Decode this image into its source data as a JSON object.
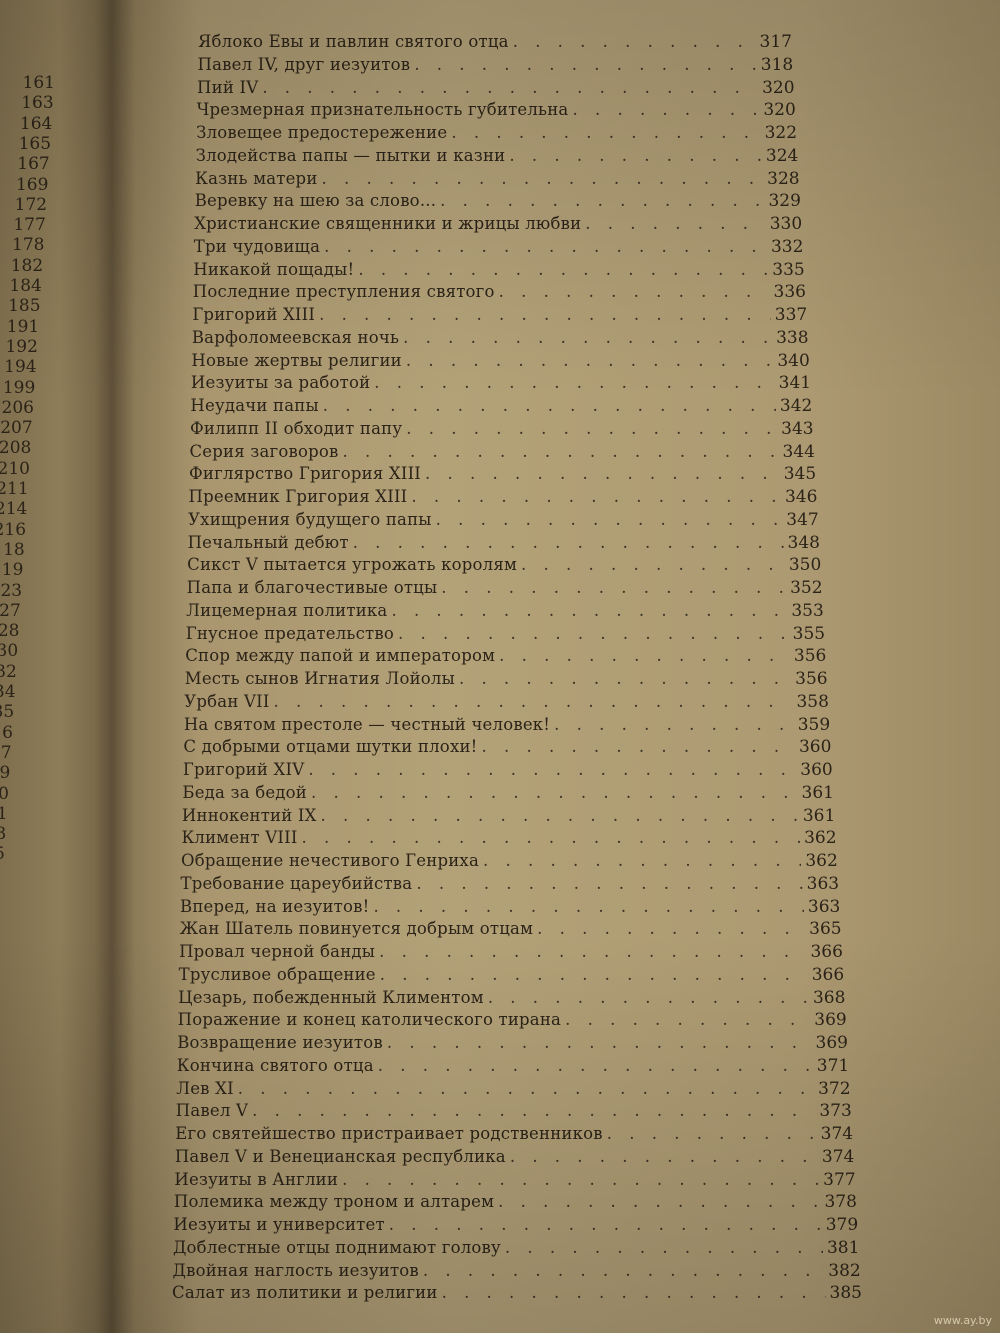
{
  "left_page_numbers": [
    "161",
    "163",
    "164",
    "165",
    "167",
    "169",
    "172",
    "177",
    "178",
    "182",
    "184",
    "185",
    "191",
    "192",
    "194",
    "199",
    "206",
    "207",
    "208",
    "210",
    "211",
    "214",
    "216",
    "18",
    "19",
    "23",
    "27",
    "28",
    "30",
    "32",
    "34",
    "35",
    "6",
    "7",
    "9",
    "0",
    "1",
    "3",
    "5"
  ],
  "entries": [
    {
      "title": "Яблоко Евы и павлин святого отца",
      "page": "317"
    },
    {
      "title": "Павел IV, друг иезуитов",
      "page": "318"
    },
    {
      "title": "Пий IV",
      "page": "320"
    },
    {
      "title": "Чрезмерная признательность губительна",
      "page": "320"
    },
    {
      "title": "Зловещее предостережение",
      "page": "322"
    },
    {
      "title": "Злодейства папы — пытки и казни",
      "page": "324"
    },
    {
      "title": "Казнь матери",
      "page": "328"
    },
    {
      "title": "Веревку на шею за слово...",
      "page": "329"
    },
    {
      "title": "Христианские священники и жрицы любви",
      "page": "330"
    },
    {
      "title": "Три чудовища",
      "page": "332"
    },
    {
      "title": "Никакой пощады!",
      "page": "335"
    },
    {
      "title": "Последние преступления святого",
      "page": "336"
    },
    {
      "title": "Григорий XIII",
      "page": "337"
    },
    {
      "title": "Варфоломеевская ночь",
      "page": "338"
    },
    {
      "title": "Новые жертвы религии",
      "page": "340"
    },
    {
      "title": "Иезуиты за работой",
      "page": "341"
    },
    {
      "title": "Неудачи папы",
      "page": "342"
    },
    {
      "title": "Филипп II обходит папу",
      "page": "343"
    },
    {
      "title": "Серия заговоров",
      "page": "344"
    },
    {
      "title": "Фиглярство Григория XIII",
      "page": "345"
    },
    {
      "title": "Преемник Григория XIII",
      "page": "346"
    },
    {
      "title": "Ухищрения будущего папы",
      "page": "347"
    },
    {
      "title": "Печальный дебют",
      "page": "348"
    },
    {
      "title": "Сикст V пытается угрожать королям",
      "page": "350"
    },
    {
      "title": "Папа и благочестивые отцы",
      "page": "352"
    },
    {
      "title": "Лицемерная политика",
      "page": "353"
    },
    {
      "title": "Гнусное предательство",
      "page": "355"
    },
    {
      "title": "Спор между папой и императором",
      "page": "356"
    },
    {
      "title": "Месть сынов Игнатия Лойолы",
      "page": "356"
    },
    {
      "title": "Урбан VII",
      "page": "358"
    },
    {
      "title": "На святом престоле — честный человек!",
      "page": "359"
    },
    {
      "title": "С добрыми отцами шутки плохи!",
      "page": "360"
    },
    {
      "title": "Григорий XIV",
      "page": "360"
    },
    {
      "title": "Беда за бедой",
      "page": "361"
    },
    {
      "title": "Иннокентий IX",
      "page": "361"
    },
    {
      "title": "Климент VIII",
      "page": "362"
    },
    {
      "title": "Обращение нечестивого Генриха",
      "page": "362"
    },
    {
      "title": "Требование цареубийства",
      "page": "363"
    },
    {
      "title": "Вперед, на иезуитов!",
      "page": "363"
    },
    {
      "title": "Жан Шатель повинуется добрым отцам",
      "page": "365"
    },
    {
      "title": "Провал черной банды",
      "page": "366"
    },
    {
      "title": "Трусливое обращение",
      "page": "366"
    },
    {
      "title": "Цезарь, побежденный Климентом",
      "page": "368"
    },
    {
      "title": "Поражение и конец католического тирана",
      "page": "369"
    },
    {
      "title": "Возвращение иезуитов",
      "page": "369"
    },
    {
      "title": "Кончина святого отца",
      "page": "371"
    },
    {
      "title": "Лев XI",
      "page": "372"
    },
    {
      "title": "Павел V",
      "page": "373"
    },
    {
      "title": "Его святейшество пристраивает родственников",
      "page": "374"
    },
    {
      "title": "Павел V и Венецианская республика",
      "page": "374"
    },
    {
      "title": "Иезуиты в Англии",
      "page": "377"
    },
    {
      "title": "Полемика между троном и алтарем",
      "page": "378"
    },
    {
      "title": "Иезуиты и университет",
      "page": "379"
    },
    {
      "title": "Доблестные отцы поднимают голову",
      "page": "381"
    },
    {
      "title": "Двойная наглость иезуитов",
      "page": "382"
    },
    {
      "title": "Салат из политики и религии",
      "page": "385"
    }
  ],
  "watermark": "www.ay.by"
}
